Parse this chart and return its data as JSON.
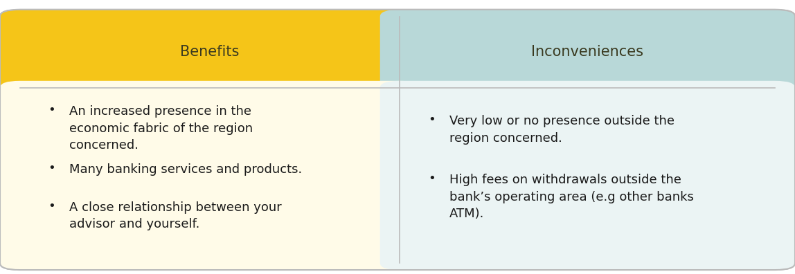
{
  "header_left_text": "Benefits",
  "header_right_text": "Inconveniences",
  "header_left_bg": "#F5C518",
  "header_right_bg": "#B8D8D8",
  "body_left_bg": "#FFFBE8",
  "body_right_bg": "#EBF4F4",
  "outer_bg": "#FFFFFF",
  "border_color": "#BBBBBB",
  "header_text_color": "#3A3A20",
  "body_text_color": "#1A1A1A",
  "left_bullets": [
    "An increased presence in the\neconomic fabric of the region\nconcerned.",
    "Many banking services and products.",
    "A close relationship between your\nadvisor and yourself."
  ],
  "right_bullets": [
    "Very low or no presence outside the\nregion concerned.",
    "High fees on withdrawals outside the\nbank’s operating area (e.g other banks\nATM)."
  ],
  "header_fontsize": 15,
  "body_fontsize": 13,
  "fig_width": 11.48,
  "fig_height": 3.96
}
